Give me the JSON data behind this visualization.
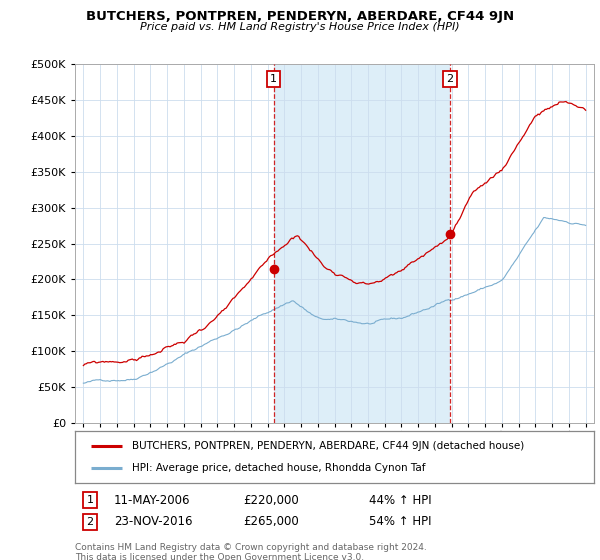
{
  "title": "BUTCHERS, PONTPREN, PENDERYN, ABERDARE, CF44 9JN",
  "subtitle": "Price paid vs. HM Land Registry's House Price Index (HPI)",
  "legend_line1": "BUTCHERS, PONTPREN, PENDERYN, ABERDARE, CF44 9JN (detached house)",
  "legend_line2": "HPI: Average price, detached house, Rhondda Cynon Taf",
  "annotation1_label": "1",
  "annotation1_date": "11-MAY-2006",
  "annotation1_price": "£220,000",
  "annotation1_hpi": "44% ↑ HPI",
  "annotation2_label": "2",
  "annotation2_date": "23-NOV-2016",
  "annotation2_price": "£265,000",
  "annotation2_hpi": "54% ↑ HPI",
  "footer_line1": "Contains HM Land Registry data © Crown copyright and database right 2024.",
  "footer_line2": "This data is licensed under the Open Government Licence v3.0.",
  "red_color": "#cc0000",
  "blue_color": "#7aadcf",
  "shade_color": "#ddeef8",
  "vline1_x": 2006.37,
  "vline2_x": 2016.9,
  "vline1_y": 215000,
  "vline2_y": 263000,
  "ylim": [
    0,
    500000
  ],
  "xlim": [
    1994.5,
    2025.5
  ],
  "yticks": [
    0,
    50000,
    100000,
    150000,
    200000,
    250000,
    300000,
    350000,
    400000,
    450000,
    500000
  ],
  "xticks": [
    1995,
    1996,
    1997,
    1998,
    1999,
    2000,
    2001,
    2002,
    2003,
    2004,
    2005,
    2006,
    2007,
    2008,
    2009,
    2010,
    2011,
    2012,
    2013,
    2014,
    2015,
    2016,
    2017,
    2018,
    2019,
    2020,
    2021,
    2022,
    2023,
    2024,
    2025
  ],
  "bg_color": "#ffffff",
  "grid_color": "#ccddee"
}
